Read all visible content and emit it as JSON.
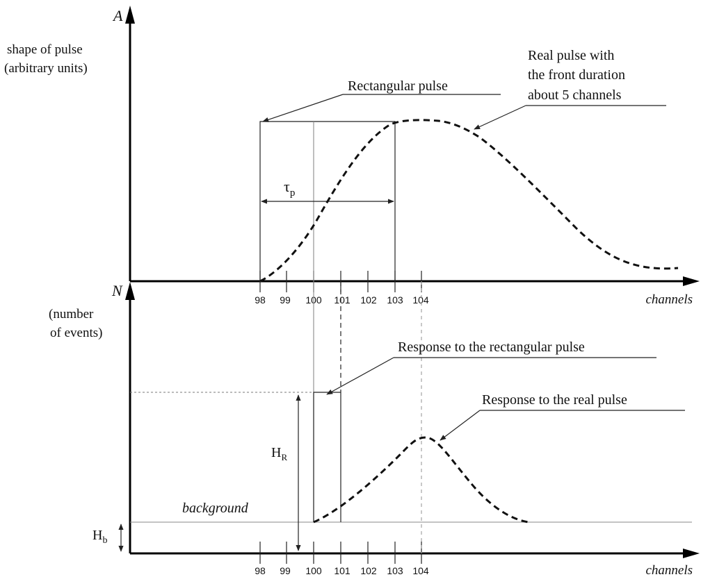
{
  "top_panel": {
    "axis_symbol": "A",
    "ylabel_line1": "shape of pulse",
    "ylabel_line2": "(arbitrary units)",
    "xlabel": "channels",
    "ticks": [
      "98",
      "99",
      "100",
      "101",
      "102",
      "103",
      "104"
    ],
    "rect_pulse_label": "Rectangular pulse",
    "real_pulse_line1": "Real pulse with",
    "real_pulse_line2": "the front duration",
    "real_pulse_line3": "about 5 channels",
    "tau_symbol": "τ",
    "tau_subscript": "p"
  },
  "bottom_panel": {
    "axis_symbol": "N",
    "ylabel_line1": "(number",
    "ylabel_line2": "of events)",
    "xlabel": "channels",
    "ticks": [
      "98",
      "99",
      "100",
      "101",
      "102",
      "103",
      "104"
    ],
    "rect_response_label": "Response to the rectangular pulse",
    "real_response_label": "Response to the real pulse",
    "background_label": "background",
    "hr_symbol": "H",
    "hr_subscript": "R",
    "hb_symbol": "H",
    "hb_subscript": "b"
  }
}
